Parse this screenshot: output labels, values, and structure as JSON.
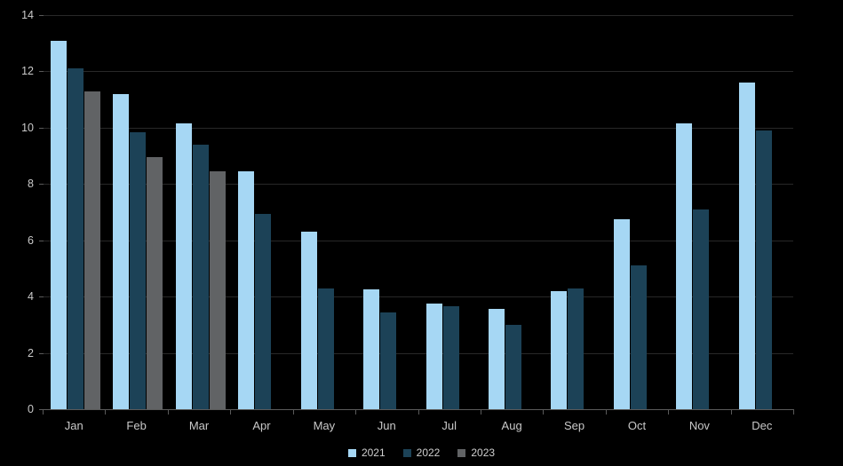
{
  "chart": {
    "background": "#000000",
    "grid_color": "#282828",
    "axis_color": "#5a5a5a",
    "label_color": "#c9c9c9",
    "legend_text_color": "#d0d0d0"
  },
  "chart_data": {
    "type": "bar",
    "title": "",
    "xlabel": "",
    "ylabel": "",
    "grid": true,
    "legend_position": "bottom",
    "ylim": [
      0,
      14
    ],
    "y_ticks": [
      0,
      2,
      4,
      6,
      8,
      10,
      12,
      14
    ],
    "categories": [
      "Jan",
      "Feb",
      "Mar",
      "Apr",
      "May",
      "Jun",
      "Jul",
      "Aug",
      "Sep",
      "Oct",
      "Nov",
      "Dec"
    ],
    "series": [
      {
        "name": "2021",
        "color": "#a6d7f4",
        "values": [
          13.1,
          11.2,
          10.15,
          8.45,
          6.3,
          4.25,
          3.75,
          3.55,
          4.2,
          6.75,
          10.15,
          11.6
        ]
      },
      {
        "name": "2022",
        "color": "#1c4257",
        "values": [
          12.1,
          9.85,
          9.4,
          6.95,
          4.3,
          3.45,
          3.65,
          3.0,
          4.3,
          5.1,
          7.1,
          9.9
        ]
      },
      {
        "name": "2023",
        "color": "#616365",
        "values": [
          11.3,
          8.95,
          8.45,
          null,
          null,
          null,
          null,
          null,
          null,
          null,
          null,
          null
        ]
      }
    ]
  }
}
